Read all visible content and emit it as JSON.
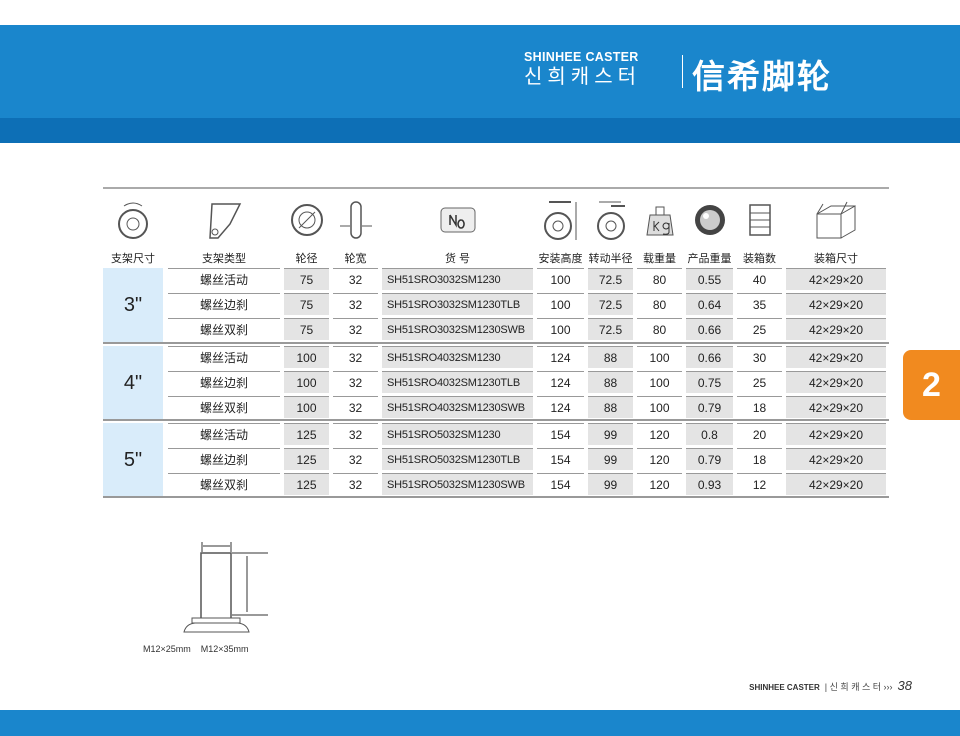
{
  "brand": {
    "en": "SHINHEE CASTER",
    "ko": "신희캐스터",
    "cn": "信希脚轮"
  },
  "chapter_tab": "2",
  "headers": [
    {
      "label": "支架尺寸",
      "icon": "wheel-rotation-icon"
    },
    {
      "label": "支架类型",
      "icon": "bracket-icon"
    },
    {
      "label": "轮径",
      "icon": "wheel-diameter-icon"
    },
    {
      "label": "轮宽",
      "icon": "wheel-width-icon"
    },
    {
      "label": "货  号",
      "icon": "item-number-icon",
      "icon_text": "No."
    },
    {
      "label": "安装高度",
      "icon": "mount-height-icon"
    },
    {
      "label": "转动半径",
      "icon": "swivel-radius-icon"
    },
    {
      "label": "载重量",
      "icon": "weight-kg-icon",
      "icon_text": "kg"
    },
    {
      "label": "产品重量",
      "icon": "product-weight-icon"
    },
    {
      "label": "装箱数",
      "icon": "carton-qty-icon"
    },
    {
      "label": "装箱尺寸",
      "icon": "carton-size-icon"
    }
  ],
  "groups": [
    {
      "size": "3\"",
      "rows": [
        [
          "螺丝活动",
          "75",
          "32",
          "SH51SRO3032SM1230",
          "100",
          "72.5",
          "80",
          "0.55",
          "40",
          "42×29×20"
        ],
        [
          "螺丝边刹",
          "75",
          "32",
          "SH51SRO3032SM1230TLB",
          "100",
          "72.5",
          "80",
          "0.64",
          "35",
          "42×29×20"
        ],
        [
          "螺丝双刹",
          "75",
          "32",
          "SH51SRO3032SM1230SWB",
          "100",
          "72.5",
          "80",
          "0.66",
          "25",
          "42×29×20"
        ]
      ]
    },
    {
      "size": "4\"",
      "rows": [
        [
          "螺丝活动",
          "100",
          "32",
          "SH51SRO4032SM1230",
          "124",
          "88",
          "100",
          "0.66",
          "30",
          "42×29×20"
        ],
        [
          "螺丝边刹",
          "100",
          "32",
          "SH51SRO4032SM1230TLB",
          "124",
          "88",
          "100",
          "0.75",
          "25",
          "42×29×20"
        ],
        [
          "螺丝双刹",
          "100",
          "32",
          "SH51SRO4032SM1230SWB",
          "124",
          "88",
          "100",
          "0.79",
          "18",
          "42×29×20"
        ]
      ]
    },
    {
      "size": "5\"",
      "rows": [
        [
          "螺丝活动",
          "125",
          "32",
          "SH51SRO5032SM1230",
          "154",
          "99",
          "120",
          "0.8",
          "20",
          "42×29×20"
        ],
        [
          "螺丝边刹",
          "125",
          "32",
          "SH51SRO5032SM1230TLB",
          "154",
          "99",
          "120",
          "0.79",
          "18",
          "42×29×20"
        ],
        [
          "螺丝双刹",
          "125",
          "32",
          "SH51SRO5032SM1230SWB",
          "154",
          "99",
          "120",
          "0.93",
          "12",
          "42×29×20"
        ]
      ]
    }
  ],
  "bolt_caption": "M12×25mm    M12×35mm",
  "footer": {
    "brand": "SHINHEE CASTER",
    "ko": "| 신 희 캐 스 터  ›››",
    "page": "38"
  },
  "colors": {
    "blue": "#1a86cc",
    "orange": "#f18a1f",
    "size_bg": "#d9ecfa",
    "shade": "#e4e4e4"
  }
}
